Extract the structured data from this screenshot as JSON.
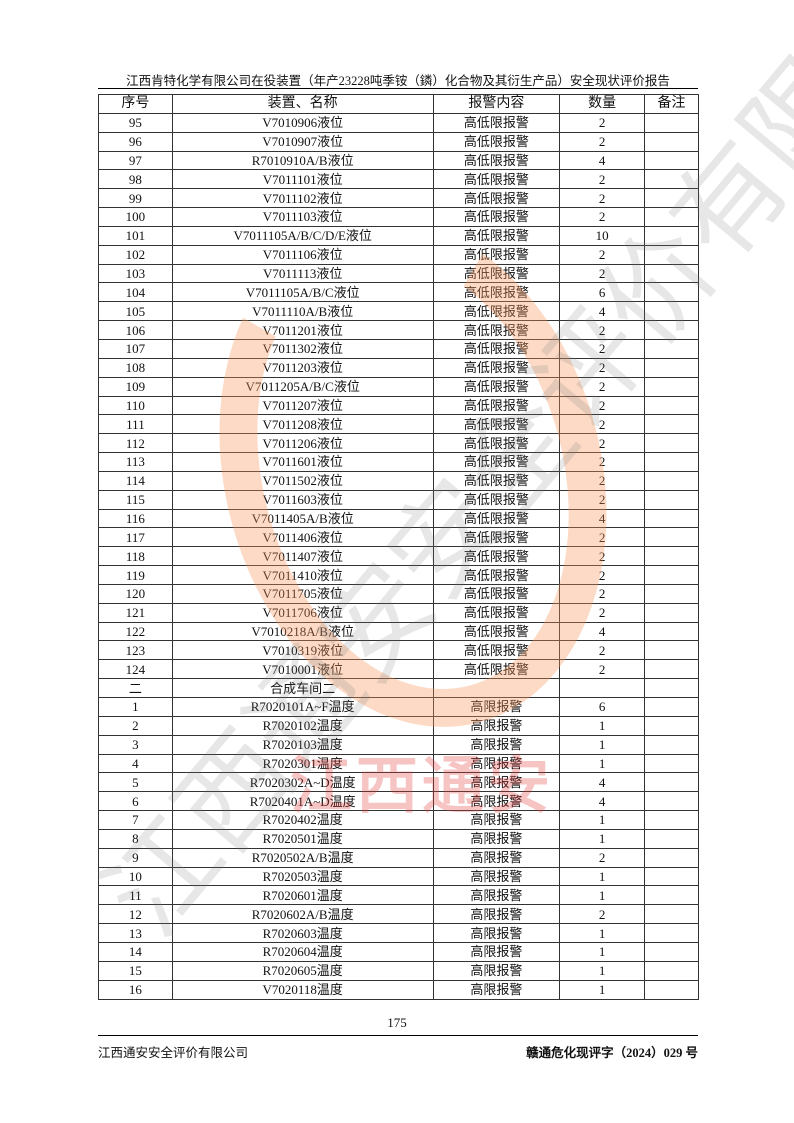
{
  "header": {
    "title": "江西肯特化学有限公司在役装置（年产23228吨季铵（鏻）化合物及其衍生产品）安全现状评价报告"
  },
  "table": {
    "columns": [
      "序号",
      "装置、名称",
      "报警内容",
      "数量",
      "备注"
    ],
    "rows": [
      [
        "95",
        "V7010906液位",
        "高低限报警",
        "2",
        ""
      ],
      [
        "96",
        "V7010907液位",
        "高低限报警",
        "2",
        ""
      ],
      [
        "97",
        "R7010910A/B液位",
        "高低限报警",
        "4",
        ""
      ],
      [
        "98",
        "V7011101液位",
        "高低限报警",
        "2",
        ""
      ],
      [
        "99",
        "V7011102液位",
        "高低限报警",
        "2",
        ""
      ],
      [
        "100",
        "V7011103液位",
        "高低限报警",
        "2",
        ""
      ],
      [
        "101",
        "V7011105A/B/C/D/E液位",
        "高低限报警",
        "10",
        ""
      ],
      [
        "102",
        "V7011106液位",
        "高低限报警",
        "2",
        ""
      ],
      [
        "103",
        "V7011113液位",
        "高低限报警",
        "2",
        ""
      ],
      [
        "104",
        "V7011105A/B/C液位",
        "高低限报警",
        "6",
        ""
      ],
      [
        "105",
        "V7011110A/B液位",
        "高低限报警",
        "4",
        ""
      ],
      [
        "106",
        "V7011201液位",
        "高低限报警",
        "2",
        ""
      ],
      [
        "107",
        "V7011302液位",
        "高低限报警",
        "2",
        ""
      ],
      [
        "108",
        "V7011203液位",
        "高低限报警",
        "2",
        ""
      ],
      [
        "109",
        "V7011205A/B/C液位",
        "高低限报警",
        "2",
        ""
      ],
      [
        "110",
        "V7011207液位",
        "高低限报警",
        "2",
        ""
      ],
      [
        "111",
        "V7011208液位",
        "高低限报警",
        "2",
        ""
      ],
      [
        "112",
        "V7011206液位",
        "高低限报警",
        "2",
        ""
      ],
      [
        "113",
        "V7011601液位",
        "高低限报警",
        "2",
        ""
      ],
      [
        "114",
        "V7011502液位",
        "高低限报警",
        "2",
        ""
      ],
      [
        "115",
        "V7011603液位",
        "高低限报警",
        "2",
        ""
      ],
      [
        "116",
        "V7011405A/B液位",
        "高低限报警",
        "4",
        ""
      ],
      [
        "117",
        "V7011406液位",
        "高低限报警",
        "2",
        ""
      ],
      [
        "118",
        "V7011407液位",
        "高低限报警",
        "2",
        ""
      ],
      [
        "119",
        "V7011410液位",
        "高低限报警",
        "2",
        ""
      ],
      [
        "120",
        "V7011705液位",
        "高低限报警",
        "2",
        ""
      ],
      [
        "121",
        "V7011706液位",
        "高低限报警",
        "2",
        ""
      ],
      [
        "122",
        "V7010218A/B液位",
        "高低限报警",
        "4",
        ""
      ],
      [
        "123",
        "V7010319液位",
        "高低限报警",
        "2",
        ""
      ],
      [
        "124",
        "V7010001液位",
        "高低限报警",
        "2",
        ""
      ],
      [
        "二",
        "合成车间二",
        "",
        "",
        ""
      ],
      [
        "1",
        "R7020101A~F温度",
        "高限报警",
        "6",
        ""
      ],
      [
        "2",
        "R7020102温度",
        "高限报警",
        "1",
        ""
      ],
      [
        "3",
        "R7020103温度",
        "高限报警",
        "1",
        ""
      ],
      [
        "4",
        "R7020301温度",
        "高限报警",
        "1",
        ""
      ],
      [
        "5",
        "R7020302A~D温度",
        "高限报警",
        "4",
        ""
      ],
      [
        "6",
        "R7020401A~D温度",
        "高限报警",
        "4",
        ""
      ],
      [
        "7",
        "R7020402温度",
        "高限报警",
        "1",
        ""
      ],
      [
        "8",
        "R7020501温度",
        "高限报警",
        "1",
        ""
      ],
      [
        "9",
        "R7020502A/B温度",
        "高限报警",
        "2",
        ""
      ],
      [
        "10",
        "R7020503温度",
        "高限报警",
        "1",
        ""
      ],
      [
        "11",
        "R7020601温度",
        "高限报警",
        "1",
        ""
      ],
      [
        "12",
        "R7020602A/B温度",
        "高限报警",
        "2",
        ""
      ],
      [
        "13",
        "R7020603温度",
        "高限报警",
        "1",
        ""
      ],
      [
        "14",
        "R7020604温度",
        "高限报警",
        "1",
        ""
      ],
      [
        "15",
        "R7020605温度",
        "高限报警",
        "1",
        ""
      ],
      [
        "16",
        "V7020118温度",
        "高限报警",
        "1",
        ""
      ]
    ]
  },
  "watermark": {
    "text_red": "江西通安",
    "text_gray": "江西通安安全评价有限公司"
  },
  "footer": {
    "page_number": "175",
    "company": "江西通安安全评价有限公司",
    "doc_number": "赣通危化现评字（2024）029 号"
  }
}
